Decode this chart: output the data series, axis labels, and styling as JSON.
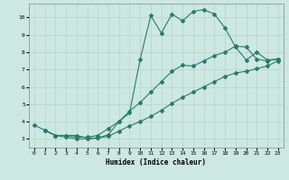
{
  "title": "",
  "xlabel": "Humidex (Indice chaleur)",
  "ylabel": "",
  "background_color": "#cce8e0",
  "grid_color": "#b8d8d0",
  "line_color": "#2a7a6e",
  "xlim": [
    -0.5,
    23.5
  ],
  "ylim": [
    2.5,
    10.8
  ],
  "xticks": [
    0,
    1,
    2,
    3,
    4,
    5,
    6,
    7,
    8,
    9,
    10,
    11,
    12,
    13,
    14,
    15,
    16,
    17,
    18,
    19,
    20,
    21,
    22,
    23
  ],
  "yticks": [
    3,
    4,
    5,
    6,
    7,
    8,
    9,
    10
  ],
  "series1_x": [
    0,
    1,
    2,
    3,
    4,
    5,
    6,
    7,
    8,
    9,
    10,
    11,
    12,
    13,
    14,
    15,
    16,
    17,
    18,
    19,
    20,
    21,
    22,
    23
  ],
  "series1_y": [
    3.8,
    3.5,
    3.2,
    3.2,
    3.2,
    3.05,
    3.05,
    3.25,
    4.0,
    4.5,
    7.6,
    10.1,
    9.1,
    10.2,
    9.8,
    10.35,
    10.45,
    10.2,
    9.4,
    8.3,
    7.55,
    8.0,
    7.55,
    7.6
  ],
  "series2_x": [
    1,
    2,
    3,
    4,
    5,
    6,
    7,
    8,
    9,
    10,
    11,
    12,
    13,
    14,
    15,
    16,
    17,
    18,
    19,
    20,
    21,
    22,
    23
  ],
  "series2_y": [
    3.5,
    3.2,
    3.2,
    3.1,
    3.1,
    3.2,
    3.6,
    4.0,
    4.6,
    5.1,
    5.7,
    6.3,
    6.9,
    7.25,
    7.2,
    7.5,
    7.8,
    8.0,
    8.35,
    8.3,
    7.6,
    7.5,
    7.6
  ],
  "series3_x": [
    1,
    2,
    3,
    4,
    5,
    6,
    7,
    8,
    9,
    10,
    11,
    12,
    13,
    14,
    15,
    16,
    17,
    18,
    19,
    20,
    21,
    22,
    23
  ],
  "series3_y": [
    3.5,
    3.2,
    3.1,
    3.0,
    3.0,
    3.05,
    3.15,
    3.45,
    3.75,
    4.0,
    4.3,
    4.65,
    5.05,
    5.4,
    5.7,
    6.0,
    6.3,
    6.6,
    6.8,
    6.9,
    7.05,
    7.2,
    7.5
  ]
}
